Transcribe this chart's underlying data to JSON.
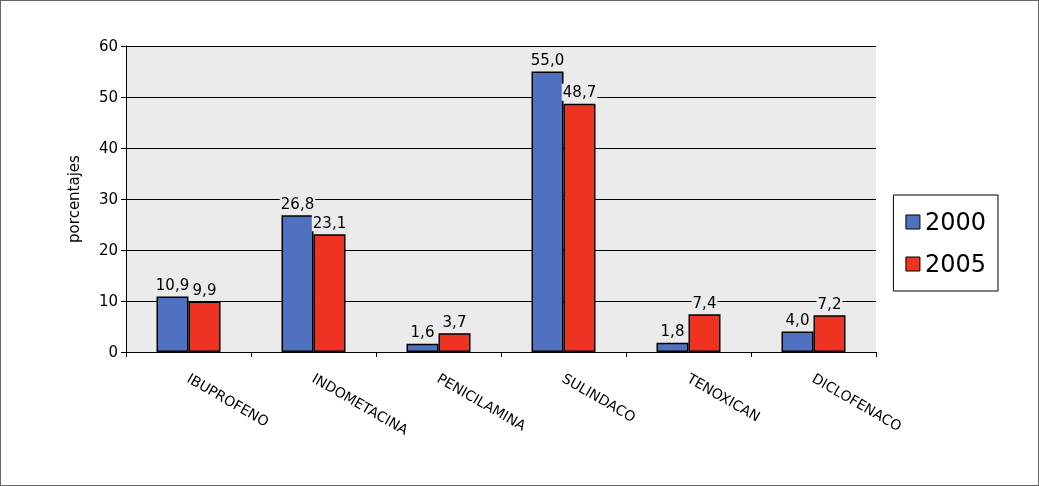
{
  "chart_data": {
    "type": "bar",
    "ylabel": "porcentajes",
    "categories": [
      "IBUPROFENO",
      "INDOMETACINA",
      "PENICILAMINA",
      "SULINDACO",
      "TENOXICAN",
      "DICLOFENACO"
    ],
    "series": [
      {
        "name": "2000",
        "color": "#4f72c0",
        "values": [
          10.9,
          26.8,
          1.6,
          55.0,
          1.8,
          4.0
        ],
        "value_labels": [
          "10,9",
          "26,8",
          "1,6",
          "55,0",
          "1,8",
          "4,0"
        ]
      },
      {
        "name": "2005",
        "color": "#ee3322",
        "values": [
          9.9,
          23.1,
          3.7,
          48.7,
          7.4,
          7.2
        ],
        "value_labels": [
          "9,9",
          "23,1",
          "3,7",
          "48,7",
          "7,4",
          "7,2"
        ]
      }
    ],
    "ylim": [
      0,
      60
    ],
    "yticks": [
      0,
      10,
      20,
      30,
      40,
      50,
      60
    ],
    "grid": "y",
    "legend": "right"
  }
}
